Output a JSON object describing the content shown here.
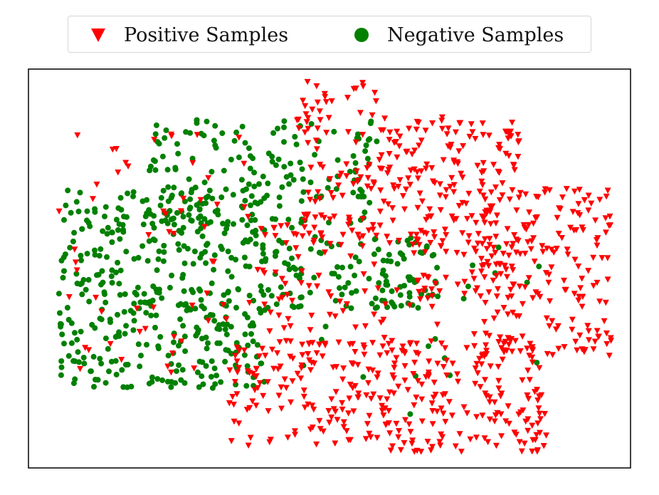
{
  "chart_data": {
    "type": "scatter",
    "title": "",
    "xlabel": "",
    "ylabel": "",
    "axes_visible": false,
    "grid": false,
    "legend_position": "top-center",
    "xlim": [
      0,
      100
    ],
    "ylim": [
      0,
      100
    ],
    "series": [
      {
        "name": "Positive Samples",
        "marker": "triangle-down",
        "color": "#ff0000",
        "clusters": [
          {
            "region": "upper-center",
            "x": [
              44,
              58
            ],
            "y": [
              58,
              97
            ],
            "count": 90
          },
          {
            "region": "upper-right arc",
            "x": [
              58,
              82
            ],
            "y": [
              62,
              88
            ],
            "count": 150
          },
          {
            "region": "right arc",
            "x": [
              74,
              97
            ],
            "y": [
              28,
              70
            ],
            "count": 200
          },
          {
            "region": "bottom arc",
            "x": [
              33,
              86
            ],
            "y": [
              4,
              32
            ],
            "count": 330
          },
          {
            "region": "inner right band",
            "x": [
              64,
              82
            ],
            "y": [
              42,
              60
            ],
            "count": 60
          },
          {
            "region": "middle scattered",
            "x": [
              37,
              68
            ],
            "y": [
              30,
              62
            ],
            "count": 90
          },
          {
            "region": "left scattered",
            "x": [
              5,
              38
            ],
            "y": [
              22,
              85
            ],
            "count": 60
          }
        ]
      },
      {
        "name": "Negative Samples",
        "marker": "circle",
        "color": "#008000",
        "clusters": [
          {
            "region": "left mass",
            "x": [
              5,
              40
            ],
            "y": [
              20,
              70
            ],
            "count": 430
          },
          {
            "region": "upper-left",
            "x": [
              20,
              58
            ],
            "y": [
              60,
              88
            ],
            "count": 160
          },
          {
            "region": "center band",
            "x": [
              40,
              68
            ],
            "y": [
              40,
              58
            ],
            "count": 120
          },
          {
            "region": "scattered",
            "x": [
              45,
              85
            ],
            "y": [
              10,
              60
            ],
            "count": 20
          }
        ]
      }
    ]
  },
  "legend": {
    "positive_label": "Positive Samples",
    "negative_label": "Negative Samples"
  }
}
